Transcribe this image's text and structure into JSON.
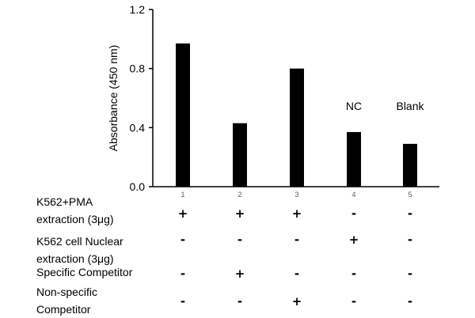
{
  "chart_data": {
    "type": "bar",
    "categories": [
      "1",
      "2",
      "3",
      "4",
      "5"
    ],
    "values": [
      0.97,
      0.43,
      0.8,
      0.37,
      0.29
    ],
    "xlabel": "",
    "ylabel": "Absorbance (450 nm)",
    "ylim": [
      0,
      1.2
    ],
    "yticks": [
      "0.0",
      "0.4",
      "0.8",
      "1.2"
    ],
    "annotations": [
      {
        "category": "4",
        "text": "NC"
      },
      {
        "category": "5",
        "text": "Blank"
      }
    ],
    "bar_color": "#000000",
    "grid": false,
    "legend": "none"
  },
  "conditions": [
    {
      "label_lines": [
        "K562+PMA",
        "extraction (3μg)"
      ],
      "marks": [
        "+",
        "+",
        "+",
        "-",
        "-"
      ]
    },
    {
      "label_lines": [
        "K562 cell Nuclear",
        "extraction (3μg)"
      ],
      "marks": [
        "-",
        "-",
        "-",
        "+",
        "-"
      ]
    },
    {
      "label_lines": [
        "Specific Competitor"
      ],
      "marks": [
        "-",
        "+",
        "-",
        "-",
        "-"
      ]
    },
    {
      "label_lines": [
        "Non-specific",
        "Competitor"
      ],
      "marks": [
        "-",
        "-",
        "+",
        "-",
        "-"
      ]
    }
  ]
}
